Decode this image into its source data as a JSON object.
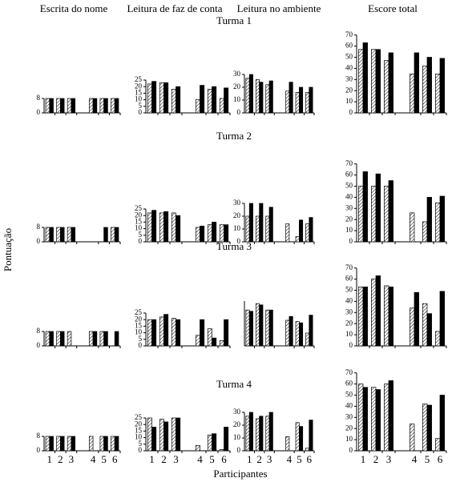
{
  "figure": {
    "column_titles": [
      "Escrita do nome",
      "Leitura de faz de conta",
      "Leitura no ambiente",
      "Escore total"
    ],
    "row_titles": [
      "Turma 1",
      "Turma 2",
      "Turma 3",
      "Turma 4"
    ],
    "ylabel": "Pontuação",
    "xlabel": "Participantes"
  },
  "chart_data": [
    {
      "type": "bar",
      "categories": [
        null,
        null,
        null,
        null,
        null,
        null
      ],
      "ylim": [
        0,
        8
      ],
      "yticks": [
        0,
        8
      ],
      "series": [
        {
          "color": "#ffffff",
          "pattern": "hatch",
          "values": [
            8,
            8,
            8,
            8,
            8,
            8
          ]
        },
        {
          "color": "#000000",
          "values": [
            8,
            8,
            8,
            8,
            8,
            8
          ]
        }
      ]
    },
    {
      "type": "bar",
      "categories": [
        null,
        null,
        null,
        null,
        null,
        null
      ],
      "ylim": [
        0,
        25
      ],
      "yticks": [
        0,
        5,
        10,
        15,
        20,
        25
      ],
      "series": [
        {
          "color": "#ffffff",
          "pattern": "hatch",
          "values": [
            22,
            23,
            18,
            10,
            18,
            11
          ]
        },
        {
          "color": "#000000",
          "values": [
            24,
            23,
            20,
            21,
            20,
            19
          ]
        }
      ]
    },
    {
      "type": "bar",
      "categories": [
        null,
        null,
        null,
        null,
        null,
        null
      ],
      "ylim": [
        0,
        30
      ],
      "yticks": [
        0,
        10,
        20,
        30
      ],
      "series": [
        {
          "color": "#ffffff",
          "pattern": "hatch",
          "values": [
            27,
            26,
            22,
            17,
            16,
            16
          ]
        },
        {
          "color": "#000000",
          "values": [
            30,
            24,
            25,
            24,
            20,
            20
          ]
        }
      ]
    },
    {
      "type": "bar",
      "categories": [
        null,
        null,
        null,
        null,
        null,
        null
      ],
      "ylim": [
        0,
        70
      ],
      "yticks": [
        0,
        10,
        20,
        30,
        40,
        50,
        60,
        70
      ],
      "series": [
        {
          "color": "#ffffff",
          "pattern": "hatch",
          "values": [
            57,
            57,
            47,
            35,
            42,
            35
          ]
        },
        {
          "color": "#000000",
          "values": [
            63,
            57,
            54,
            54,
            50,
            49
          ]
        }
      ]
    },
    {
      "type": "bar",
      "categories": [
        null,
        null,
        null,
        null,
        null,
        null
      ],
      "ylim": [
        0,
        8
      ],
      "yticks": [
        0,
        8
      ],
      "series": [
        {
          "color": "#ffffff",
          "pattern": "hatch",
          "values": [
            8,
            8,
            8,
            0,
            0,
            8
          ]
        },
        {
          "color": "#000000",
          "values": [
            8,
            8,
            8,
            0,
            8,
            8
          ]
        }
      ]
    },
    {
      "type": "bar",
      "categories": [
        null,
        null,
        null,
        null,
        null,
        null
      ],
      "ylim": [
        0,
        25
      ],
      "yticks": [
        0,
        5,
        10,
        15,
        20,
        25
      ],
      "series": [
        {
          "color": "#ffffff",
          "pattern": "hatch",
          "values": [
            22,
            22,
            22,
            11,
            13,
            13
          ]
        },
        {
          "color": "#000000",
          "values": [
            24,
            23,
            20,
            12,
            15,
            13
          ]
        }
      ]
    },
    {
      "type": "bar",
      "categories": [
        null,
        null,
        null,
        null,
        null,
        null
      ],
      "ylim": [
        0,
        30
      ],
      "yticks": [
        0,
        10,
        20,
        30
      ],
      "series": [
        {
          "color": "#ffffff",
          "pattern": "hatch",
          "values": [
            20,
            20,
            20,
            14,
            4,
            14
          ]
        },
        {
          "color": "#000000",
          "values": [
            30,
            30,
            27,
            0,
            17,
            19
          ]
        }
      ]
    },
    {
      "type": "bar",
      "categories": [
        null,
        null,
        null,
        null,
        null,
        null
      ],
      "ylim": [
        0,
        70
      ],
      "yticks": [
        0,
        10,
        20,
        30,
        40,
        50,
        60,
        70
      ],
      "series": [
        {
          "color": "#ffffff",
          "pattern": "hatch",
          "values": [
            50,
            50,
            50,
            26,
            18,
            35
          ]
        },
        {
          "color": "#000000",
          "values": [
            63,
            61,
            55,
            0,
            40,
            41
          ]
        }
      ]
    },
    {
      "type": "bar",
      "categories": [
        null,
        null,
        null,
        null,
        null,
        null
      ],
      "ylim": [
        0,
        8
      ],
      "yticks": [
        0,
        8
      ],
      "series": [
        {
          "color": "#ffffff",
          "pattern": "hatch",
          "values": [
            8,
            8,
            8,
            8,
            8,
            0
          ]
        },
        {
          "color": "#000000",
          "values": [
            8,
            8,
            0,
            8,
            8,
            8
          ]
        }
      ]
    },
    {
      "type": "bar",
      "categories": [
        null,
        null,
        null,
        null,
        null,
        null
      ],
      "ylim": [
        0,
        25
      ],
      "yticks": [
        0,
        5,
        10,
        15,
        20,
        25
      ],
      "series": [
        {
          "color": "#ffffff",
          "pattern": "hatch",
          "values": [
            20,
            22,
            21,
            8,
            13,
            4
          ]
        },
        {
          "color": "#000000",
          "values": [
            20,
            24,
            20,
            20,
            6,
            20
          ]
        }
      ]
    },
    {
      "type": "bar",
      "categories": [
        null,
        null,
        null,
        null,
        null,
        null
      ],
      "ylim": [
        0,
        35
      ],
      "series": [
        {
          "color": "#ffffff",
          "pattern": "hatch",
          "values": [
            28,
            33,
            28,
            20,
            19,
            10
          ]
        },
        {
          "color": "#000000",
          "values": [
            27,
            32,
            28,
            23,
            18,
            24
          ]
        }
      ]
    },
    {
      "type": "bar",
      "categories": [
        null,
        null,
        null,
        null,
        null,
        null
      ],
      "ylim": [
        0,
        70
      ],
      "yticks": [
        0,
        10,
        20,
        30,
        40,
        50,
        60,
        70
      ],
      "series": [
        {
          "color": "#ffffff",
          "pattern": "hatch",
          "values": [
            53,
            60,
            54,
            34,
            38,
            13
          ]
        },
        {
          "color": "#000000",
          "values": [
            53,
            63,
            53,
            48,
            29,
            49
          ]
        }
      ]
    },
    {
      "type": "bar",
      "categories": [
        "1",
        "2",
        "3",
        "4",
        "5",
        "6"
      ],
      "ylim": [
        0,
        8
      ],
      "yticks": [
        0,
        8
      ],
      "series": [
        {
          "color": "#ffffff",
          "pattern": "hatch",
          "values": [
            8,
            8,
            8,
            8,
            8,
            8
          ]
        },
        {
          "color": "#000000",
          "values": [
            8,
            8,
            8,
            0,
            8,
            8
          ]
        }
      ]
    },
    {
      "type": "bar",
      "categories": [
        "1",
        "2",
        "3",
        "4",
        "5",
        "6"
      ],
      "ylim": [
        0,
        25
      ],
      "yticks": [
        0,
        5,
        10,
        15,
        20,
        25
      ],
      "series": [
        {
          "color": "#ffffff",
          "pattern": "hatch",
          "values": [
            25,
            24,
            25,
            4,
            12,
            1
          ]
        },
        {
          "color": "#000000",
          "values": [
            18,
            22,
            25,
            0,
            13,
            18
          ]
        }
      ]
    },
    {
      "type": "bar",
      "categories": [
        "1",
        "2",
        "3",
        "4",
        "5",
        "6"
      ],
      "ylim": [
        0,
        30
      ],
      "yticks": [
        0,
        10,
        20,
        30
      ],
      "series": [
        {
          "color": "#ffffff",
          "pattern": "hatch",
          "values": [
            27,
            25,
            27,
            11,
            22,
            2
          ]
        },
        {
          "color": "#000000",
          "values": [
            30,
            27,
            30,
            0,
            19,
            24
          ]
        }
      ]
    },
    {
      "type": "bar",
      "categories": [
        "1",
        "2",
        "3",
        "4",
        "5",
        "6"
      ],
      "ylim": [
        0,
        70
      ],
      "yticks": [
        0,
        10,
        20,
        30,
        40,
        50,
        60,
        70
      ],
      "series": [
        {
          "color": "#ffffff",
          "pattern": "hatch",
          "values": [
            60,
            57,
            60,
            24,
            42,
            11
          ]
        },
        {
          "color": "#000000",
          "values": [
            57,
            55,
            63,
            0,
            41,
            50
          ]
        }
      ]
    }
  ]
}
